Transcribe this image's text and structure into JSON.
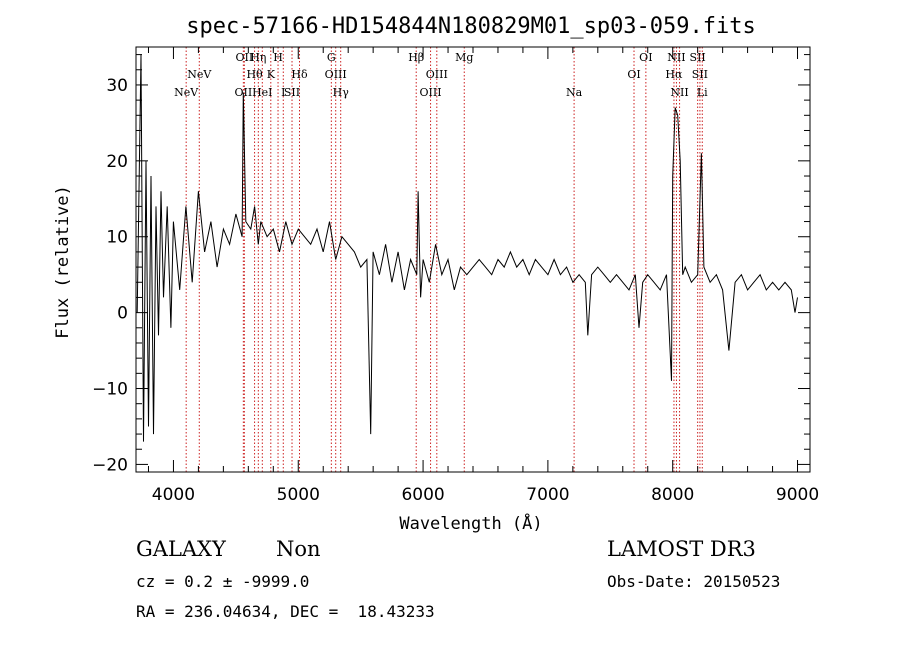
{
  "chart_data": {
    "type": "line",
    "title": "spec-57166-HD154844N180829M01_sp03-059.fits",
    "xlabel": "Wavelength (Å)",
    "ylabel": "Flux (relative)",
    "xlim": [
      3700,
      9100
    ],
    "ylim": [
      -21,
      35
    ],
    "x_ticks": [
      4000,
      5000,
      6000,
      7000,
      8000,
      9000
    ],
    "x_tick_labels": [
      "4000",
      "5000",
      "6000",
      "7000",
      "8000",
      "9000"
    ],
    "y_ticks": [
      -20,
      -10,
      0,
      10,
      20,
      30
    ],
    "y_tick_labels": [
      "−20",
      "−10",
      "0",
      "10",
      "20",
      "30"
    ],
    "grid": false,
    "line_color": "#000000",
    "marker_color": "#cc2222",
    "series": [
      {
        "name": "flux",
        "x": [
          3710,
          3740,
          3760,
          3780,
          3800,
          3820,
          3840,
          3860,
          3880,
          3900,
          3920,
          3950,
          3980,
          4000,
          4050,
          4100,
          4150,
          4200,
          4250,
          4300,
          4350,
          4400,
          4450,
          4500,
          4550,
          4560,
          4580,
          4620,
          4650,
          4680,
          4700,
          4750,
          4800,
          4850,
          4900,
          4950,
          5000,
          5050,
          5100,
          5150,
          5200,
          5250,
          5300,
          5350,
          5400,
          5450,
          5500,
          5550,
          5580,
          5600,
          5650,
          5700,
          5750,
          5800,
          5850,
          5900,
          5950,
          5960,
          5980,
          6000,
          6050,
          6100,
          6150,
          6200,
          6250,
          6300,
          6350,
          6400,
          6450,
          6500,
          6550,
          6600,
          6650,
          6700,
          6750,
          6800,
          6850,
          6900,
          6950,
          7000,
          7050,
          7100,
          7150,
          7200,
          7250,
          7300,
          7320,
          7350,
          7400,
          7450,
          7500,
          7550,
          7600,
          7650,
          7700,
          7730,
          7760,
          7800,
          7850,
          7900,
          7950,
          7990,
          8000,
          8020,
          8040,
          8060,
          8080,
          8100,
          8150,
          8200,
          8230,
          8250,
          8300,
          8350,
          8400,
          8450,
          8500,
          8550,
          8600,
          8650,
          8700,
          8750,
          8800,
          8850,
          8900,
          8950,
          8980,
          9000
        ],
        "y": [
          0,
          34,
          -17,
          20,
          -15,
          18,
          -16,
          14,
          -3,
          16,
          2,
          14,
          -2,
          12,
          3,
          14,
          4,
          16,
          8,
          12,
          6,
          11,
          9,
          13,
          10,
          29,
          12,
          11,
          14,
          9,
          12,
          10,
          11,
          8,
          12,
          9,
          11,
          10,
          9,
          11,
          8,
          12,
          7,
          10,
          9,
          8,
          6,
          7,
          -16,
          8,
          5,
          9,
          4,
          8,
          3,
          7,
          5,
          16,
          2,
          7,
          4,
          9,
          5,
          7,
          3,
          6,
          5,
          6,
          7,
          6,
          5,
          7,
          6,
          8,
          6,
          7,
          5,
          7,
          6,
          5,
          7,
          5,
          6,
          4,
          5,
          4,
          -3,
          5,
          6,
          5,
          4,
          5,
          4,
          3,
          5,
          -2,
          4,
          5,
          4,
          3,
          5,
          -9,
          18,
          27,
          26,
          20,
          5,
          6,
          4,
          5,
          21,
          6,
          4,
          5,
          3,
          -5,
          4,
          5,
          3,
          4,
          5,
          3,
          4,
          3,
          4,
          3,
          0,
          2
        ]
      }
    ],
    "line_markers": [
      {
        "wavelength": 4102,
        "label": "NeV",
        "row": 3
      },
      {
        "wavelength": 4207,
        "label": "NeV",
        "row": 2
      },
      {
        "wavelength": 4560,
        "label": "OII",
        "row": 3
      },
      {
        "wavelength": 4568,
        "label": "OII",
        "row": 1
      },
      {
        "wavelength": 4650,
        "label": "Hθ",
        "row": 2
      },
      {
        "wavelength": 4680,
        "label": "Hη",
        "row": 1
      },
      {
        "wavelength": 4712,
        "label": "HeI",
        "row": 3
      },
      {
        "wavelength": 4780,
        "label": "K",
        "row": 2
      },
      {
        "wavelength": 4838,
        "label": "H",
        "row": 1
      },
      {
        "wavelength": 4880,
        "label": "I",
        "row": 3
      },
      {
        "wavelength": 4950,
        "label": "SII",
        "row": 3
      },
      {
        "wavelength": 5010,
        "label": "Hδ",
        "row": 2
      },
      {
        "wavelength": 5265,
        "label": "G",
        "row": 1
      },
      {
        "wavelength": 5300,
        "label": "OIII",
        "row": 2
      },
      {
        "wavelength": 5340,
        "label": "Hγ",
        "row": 3
      },
      {
        "wavelength": 5945,
        "label": "Hβ",
        "row": 1
      },
      {
        "wavelength": 6060,
        "label": "OIII",
        "row": 3
      },
      {
        "wavelength": 6110,
        "label": "OIII",
        "row": 2
      },
      {
        "wavelength": 6330,
        "label": "Mg",
        "row": 1
      },
      {
        "wavelength": 7210,
        "label": "Na",
        "row": 3
      },
      {
        "wavelength": 7690,
        "label": "OI",
        "row": 2
      },
      {
        "wavelength": 7785,
        "label": "OI",
        "row": 1
      },
      {
        "wavelength": 8010,
        "label": "Hα",
        "row": 2
      },
      {
        "wavelength": 8030,
        "label": "NII",
        "row": 1
      },
      {
        "wavelength": 8055,
        "label": "NII",
        "row": 3
      },
      {
        "wavelength": 8200,
        "label": "SII",
        "row": 1
      },
      {
        "wavelength": 8218,
        "label": "SII",
        "row": 2
      },
      {
        "wavelength": 8237,
        "label": "Li",
        "row": 3
      }
    ]
  },
  "info": {
    "class": "GALAXY",
    "subclass": "Non",
    "survey": "LAMOST DR3",
    "cz": "cz = 0.2 ± -9999.0",
    "obs_date": "Obs-Date: 20150523",
    "coords": "RA = 236.04634, DEC =  18.43233"
  }
}
